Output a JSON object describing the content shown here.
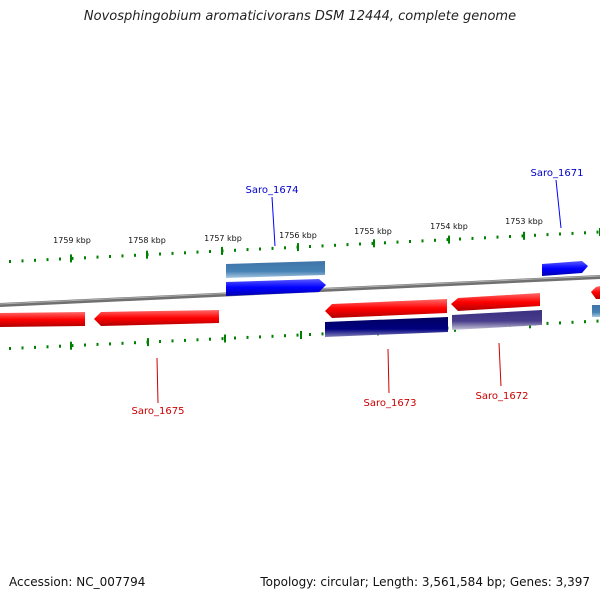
{
  "title": "Novosphingobium aromaticivorans DSM 12444, complete genome",
  "footer": {
    "accession": "Accession: NC_007794",
    "topology": "Topology: circular; Length: 3,561,584 bp; Genes: 3,397"
  },
  "colors": {
    "forward_gene": "#0000ff",
    "forward_gene_light": "#4682b4",
    "reverse_gene": "#ff0000",
    "reverse_gene_dark": "#000080",
    "reverse_gene_muted": "#483d8b",
    "tick": "#008000",
    "backbone": "#808080"
  },
  "ticks": [
    {
      "label": "1759 kbp"
    },
    {
      "label": "1758 kbp"
    },
    {
      "label": "1757 kbp"
    },
    {
      "label": "1756 kbp"
    },
    {
      "label": "1755 kbp"
    },
    {
      "label": "1754 kbp"
    },
    {
      "label": "1753 kbp"
    }
  ],
  "gene_labels": [
    {
      "name": "Saro_1674",
      "strand": "forward"
    },
    {
      "name": "Saro_1671",
      "strand": "forward"
    },
    {
      "name": "Saro_1675",
      "strand": "reverse"
    },
    {
      "name": "Saro_1673",
      "strand": "reverse"
    },
    {
      "name": "Saro_1672",
      "strand": "reverse"
    }
  ]
}
